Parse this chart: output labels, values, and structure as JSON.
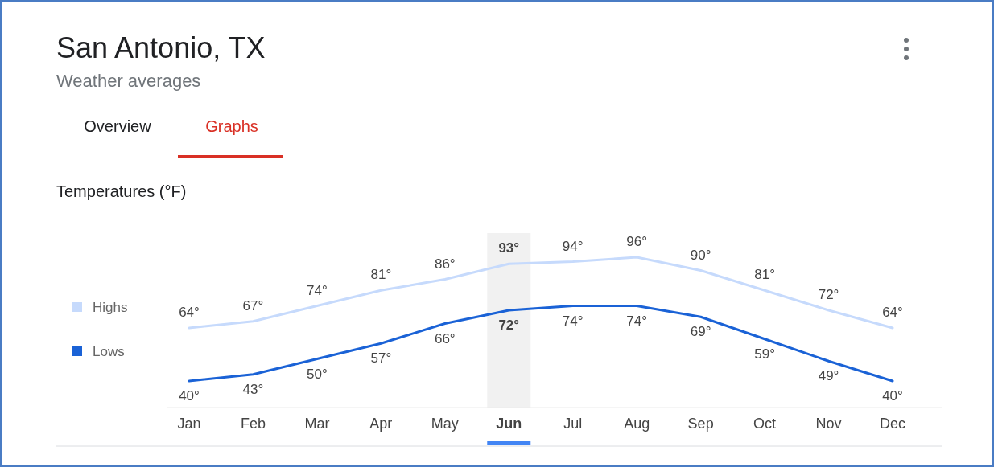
{
  "chart_data": {
    "type": "line",
    "title": "San Antonio, TX",
    "subtitle": "Weather averages",
    "annotations": [
      "Overview",
      "Graphs",
      "Temperatures (°F)"
    ],
    "categories": [
      "Jan",
      "Feb",
      "Mar",
      "Apr",
      "May",
      "Jun",
      "Jul",
      "Aug",
      "Sep",
      "Oct",
      "Nov",
      "Dec"
    ],
    "series": [
      {
        "name": "Highs",
        "color": "#c6dafc",
        "values": [
          64,
          67,
          74,
          81,
          86,
          93,
          94,
          96,
          90,
          81,
          72,
          64
        ],
        "value_labels": [
          "64°",
          "67°",
          "74°",
          "81°",
          "86°",
          "93°",
          "94°",
          "96°",
          "90°",
          "81°",
          "72°",
          "64°"
        ]
      },
      {
        "name": "Lows",
        "color": "#1a62d6",
        "values": [
          40,
          43,
          50,
          57,
          66,
          72,
          74,
          74,
          69,
          59,
          49,
          40
        ],
        "value_labels": [
          "40°",
          "43°",
          "50°",
          "57°",
          "66°",
          "72°",
          "74°",
          "74°",
          "69°",
          "59°",
          "49°",
          "40°"
        ]
      }
    ],
    "bands": [
      {
        "axis": "x",
        "from": "Jun",
        "to": "Jun",
        "color": "#f1f1f1"
      }
    ],
    "legend": "left"
  }
}
